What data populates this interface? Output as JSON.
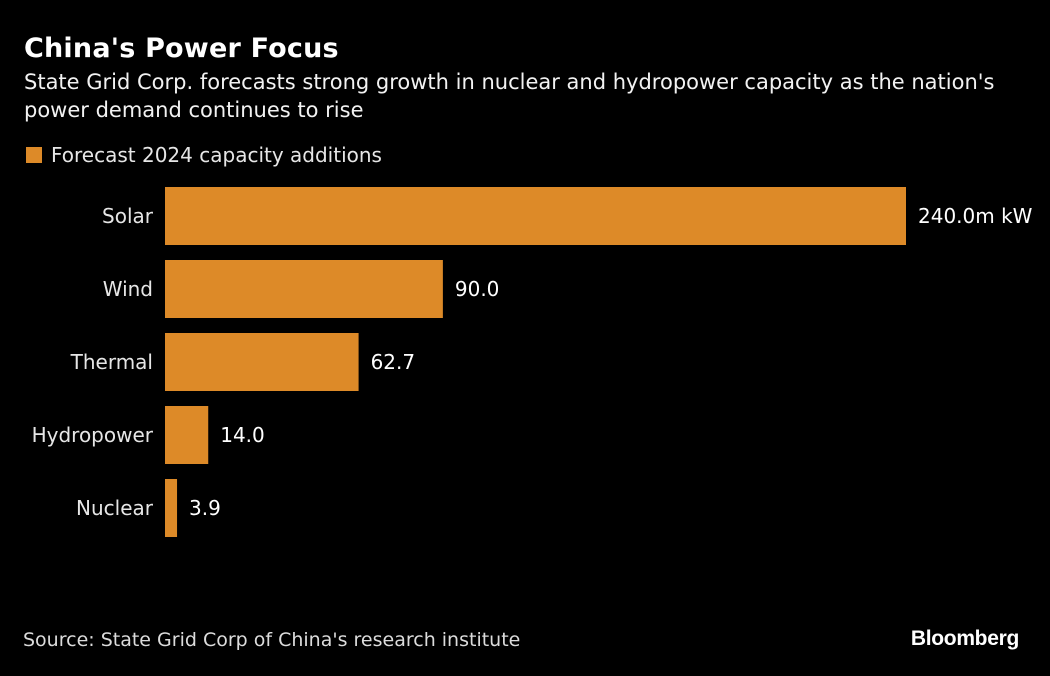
{
  "header": {
    "title": "China's Power Focus",
    "subtitle": "State Grid Corp. forecasts strong growth in nuclear and hydropower capacity as the nation's power demand continues to rise"
  },
  "footer": {
    "source": "Source: State Grid Corp of China's research institute",
    "brand": "Bloomberg"
  },
  "colors": {
    "background": "#000000",
    "bar": "#dd8a28",
    "text": "#ffffff"
  },
  "chart_data": {
    "type": "bar",
    "orientation": "horizontal",
    "title": "China's Power Focus",
    "subtitle": "State Grid Corp. forecasts strong growth in nuclear and hydropower capacity as the nation's power demand continues to rise",
    "legend": {
      "entries": [
        "Forecast 2024 capacity additions"
      ],
      "position": "top-left"
    },
    "categories": [
      "Solar",
      "Wind",
      "Thermal",
      "Hydropower",
      "Nuclear"
    ],
    "series": [
      {
        "name": "Forecast 2024 capacity additions",
        "values": [
          240.0,
          90.0,
          62.7,
          14.0,
          3.9
        ]
      }
    ],
    "value_labels": [
      "240.0m kW",
      "90.0",
      "62.7",
      "14.0",
      "3.9"
    ],
    "unit": "million kW",
    "xlabel": "",
    "ylabel": "",
    "xlim": [
      0,
      240
    ],
    "grid": false
  }
}
